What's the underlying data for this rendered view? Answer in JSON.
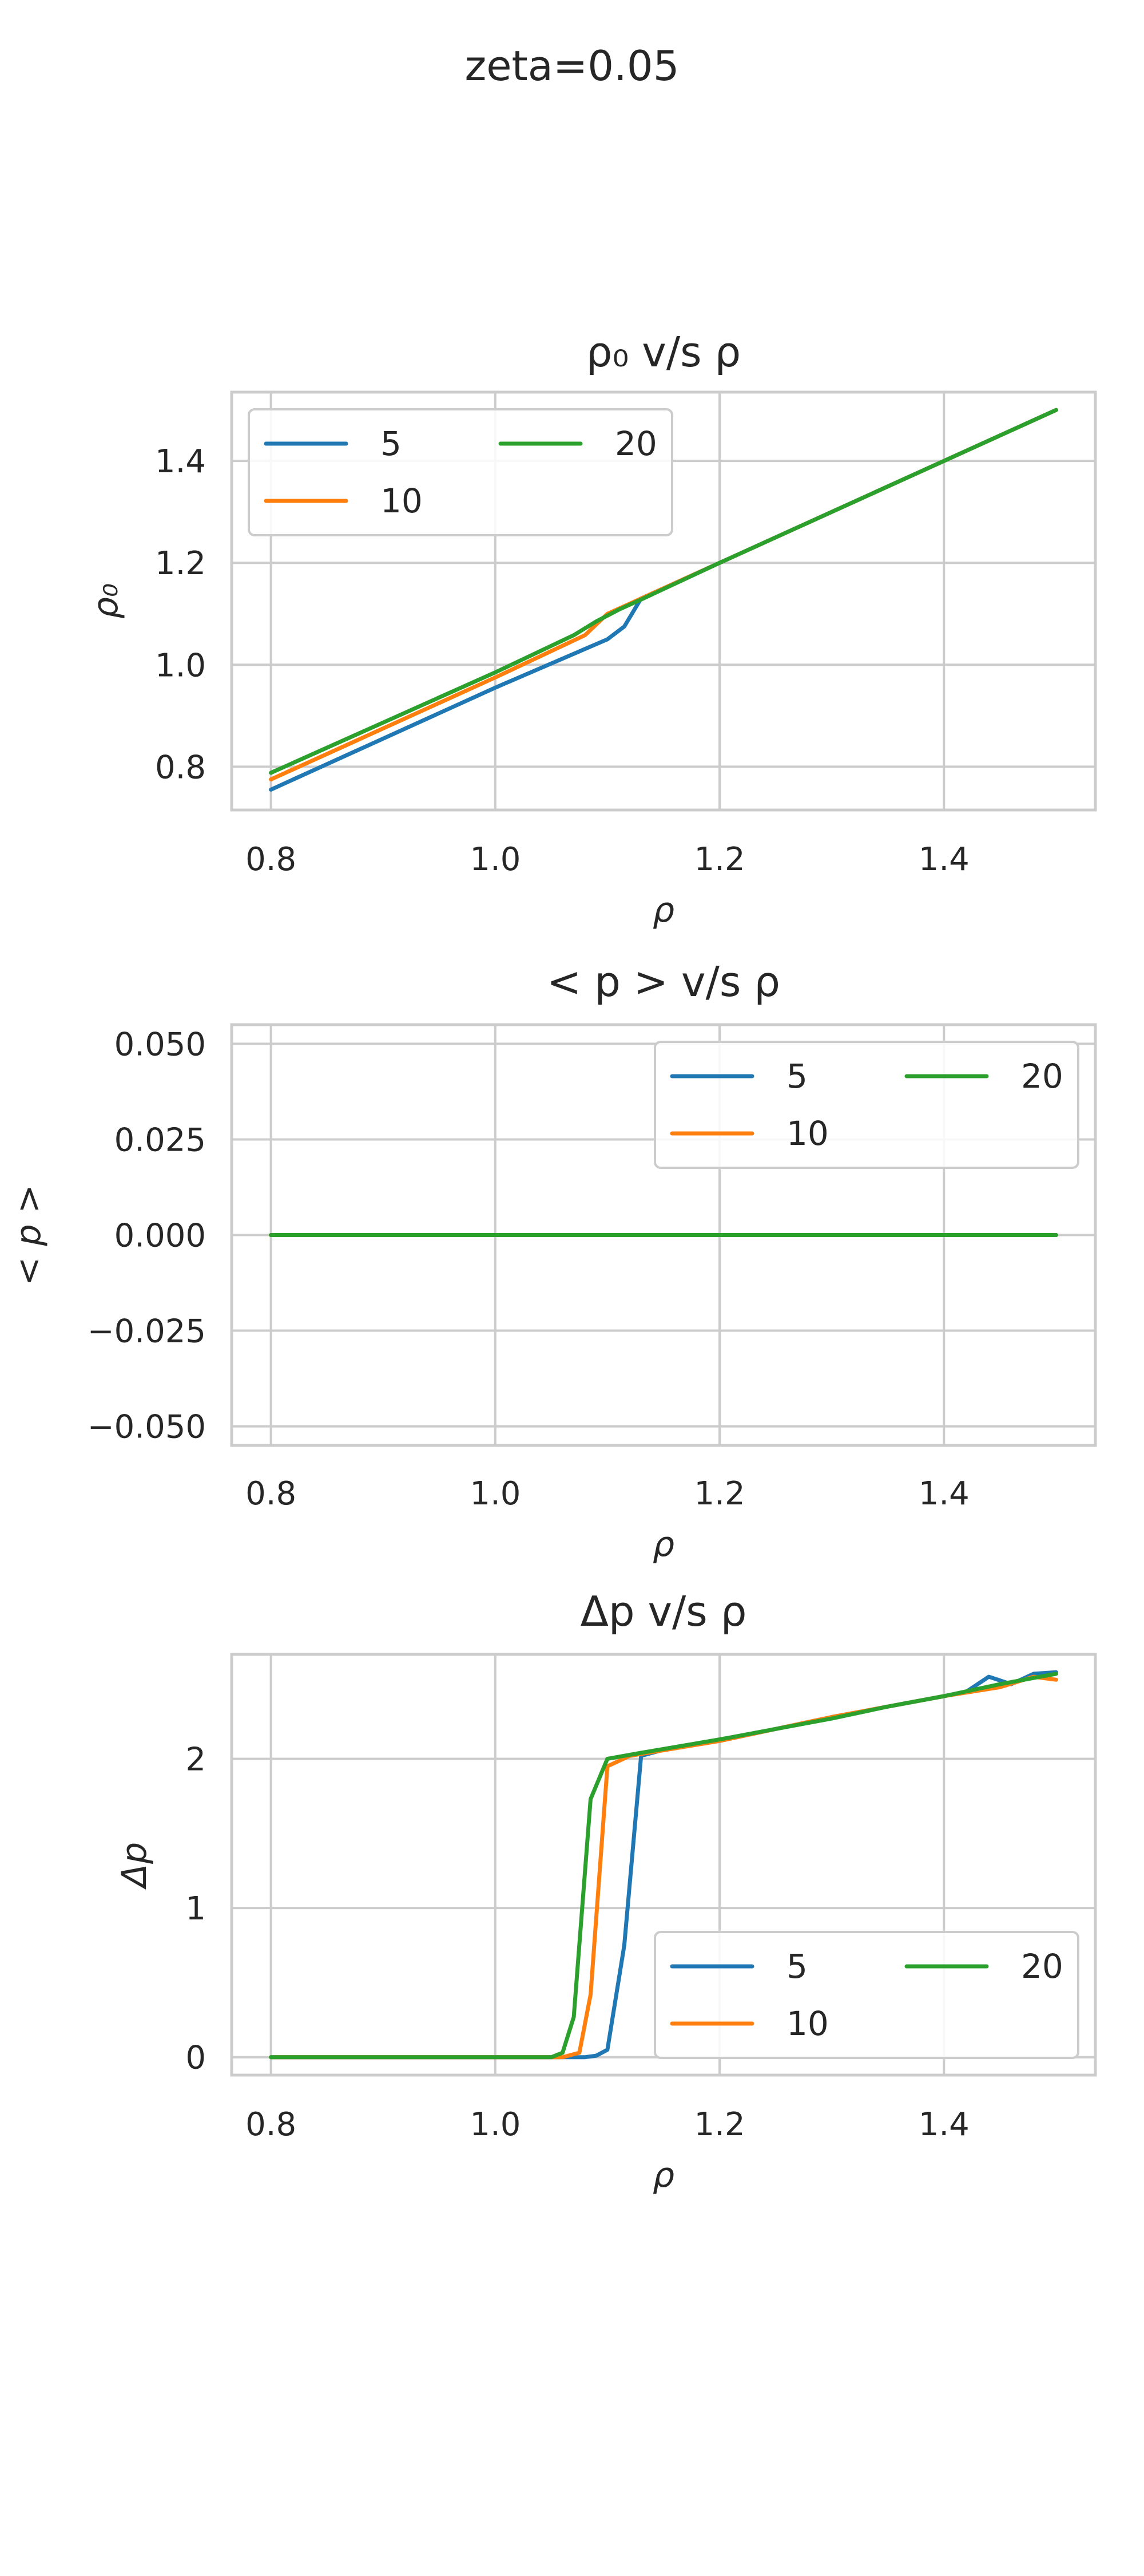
{
  "suptitle": "zeta=0.05",
  "chart_data": [
    {
      "type": "line",
      "title": "ρ₀ v/s ρ",
      "xlabel": "ρ",
      "ylabel": "ρ₀",
      "xlim": [
        0.765,
        1.535
      ],
      "ylim": [
        0.715,
        1.535
      ],
      "xticks": [
        0.8,
        1.0,
        1.2,
        1.4
      ],
      "xtick_labels": [
        "0.8",
        "1.0",
        "1.2",
        "1.4"
      ],
      "yticks": [
        0.8,
        1.0,
        1.2,
        1.4
      ],
      "ytick_labels": [
        "0.8",
        "1.0",
        "1.2",
        "1.4"
      ],
      "grid": true,
      "legend_position": "upper-left",
      "legend_columns": 2,
      "series": [
        {
          "name": "5",
          "color": "#1f77b4",
          "x": [
            0.8,
            1.0,
            1.1,
            1.115,
            1.13,
            1.2,
            1.3,
            1.4,
            1.45,
            1.5
          ],
          "y": [
            0.755,
            0.955,
            1.05,
            1.075,
            1.13,
            1.2,
            1.3,
            1.4,
            1.45,
            1.5
          ]
        },
        {
          "name": "10",
          "color": "#ff7f0e",
          "x": [
            0.8,
            1.0,
            1.08,
            1.1,
            1.13,
            1.2,
            1.3,
            1.4,
            1.5
          ],
          "y": [
            0.775,
            0.975,
            1.058,
            1.1,
            1.13,
            1.2,
            1.3,
            1.4,
            1.5
          ]
        },
        {
          "name": "20",
          "color": "#2ca02c",
          "x": [
            0.8,
            1.0,
            1.07,
            1.09,
            1.11,
            1.13,
            1.2,
            1.3,
            1.4,
            1.5
          ],
          "y": [
            0.788,
            0.985,
            1.058,
            1.085,
            1.108,
            1.128,
            1.2,
            1.3,
            1.4,
            1.5
          ]
        }
      ]
    },
    {
      "type": "line",
      "title": "< p >  v/s ρ",
      "xlabel": "ρ",
      "ylabel": "< p >",
      "xlim": [
        0.765,
        1.535
      ],
      "ylim": [
        -0.055,
        0.055
      ],
      "xticks": [
        0.8,
        1.0,
        1.2,
        1.4
      ],
      "xtick_labels": [
        "0.8",
        "1.0",
        "1.2",
        "1.4"
      ],
      "yticks": [
        0.05,
        0.025,
        0.0,
        -0.025,
        -0.05
      ],
      "ytick_labels": [
        "0.050",
        "0.025",
        "0.000",
        "−0.025",
        "−0.050"
      ],
      "grid": true,
      "legend_position": "upper-right",
      "legend_columns": 2,
      "series": [
        {
          "name": "5",
          "color": "#1f77b4",
          "x": [
            0.8,
            1.5
          ],
          "y": [
            0.0,
            0.0
          ]
        },
        {
          "name": "10",
          "color": "#ff7f0e",
          "x": [
            0.8,
            1.5
          ],
          "y": [
            0.0,
            0.0
          ]
        },
        {
          "name": "20",
          "color": "#2ca02c",
          "x": [
            0.8,
            1.5
          ],
          "y": [
            0.0,
            0.0
          ]
        }
      ]
    },
    {
      "type": "line",
      "title": "Δp v/s ρ",
      "xlabel": "ρ",
      "ylabel": "Δp",
      "xlim": [
        0.765,
        1.535
      ],
      "ylim": [
        -0.12,
        2.7
      ],
      "xticks": [
        0.8,
        1.0,
        1.2,
        1.4
      ],
      "xtick_labels": [
        "0.8",
        "1.0",
        "1.2",
        "1.4"
      ],
      "yticks": [
        0,
        1,
        2
      ],
      "ytick_labels": [
        "0",
        "1",
        "2"
      ],
      "grid": true,
      "legend_position": "lower-right",
      "legend_columns": 2,
      "series": [
        {
          "name": "5",
          "color": "#1f77b4",
          "x": [
            0.8,
            1.08,
            1.09,
            1.1,
            1.115,
            1.13,
            1.15,
            1.2,
            1.25,
            1.3,
            1.35,
            1.4,
            1.42,
            1.44,
            1.46,
            1.48,
            1.5
          ],
          "y": [
            0.0,
            0.0,
            0.01,
            0.05,
            0.75,
            2.02,
            2.06,
            2.12,
            2.2,
            2.28,
            2.35,
            2.42,
            2.45,
            2.55,
            2.5,
            2.57,
            2.58
          ]
        },
        {
          "name": "10",
          "color": "#ff7f0e",
          "x": [
            0.8,
            1.06,
            1.075,
            1.085,
            1.1,
            1.12,
            1.2,
            1.25,
            1.3,
            1.35,
            1.4,
            1.45,
            1.48,
            1.5
          ],
          "y": [
            0.0,
            0.0,
            0.03,
            0.42,
            1.95,
            2.02,
            2.12,
            2.2,
            2.28,
            2.35,
            2.42,
            2.48,
            2.55,
            2.53
          ]
        },
        {
          "name": "20",
          "color": "#2ca02c",
          "x": [
            0.8,
            1.05,
            1.06,
            1.07,
            1.085,
            1.1,
            1.13,
            1.2,
            1.25,
            1.3,
            1.35,
            1.4,
            1.45,
            1.5
          ],
          "y": [
            0.0,
            0.0,
            0.03,
            0.27,
            1.73,
            2.0,
            2.04,
            2.13,
            2.2,
            2.27,
            2.35,
            2.42,
            2.5,
            2.57
          ]
        }
      ]
    }
  ]
}
